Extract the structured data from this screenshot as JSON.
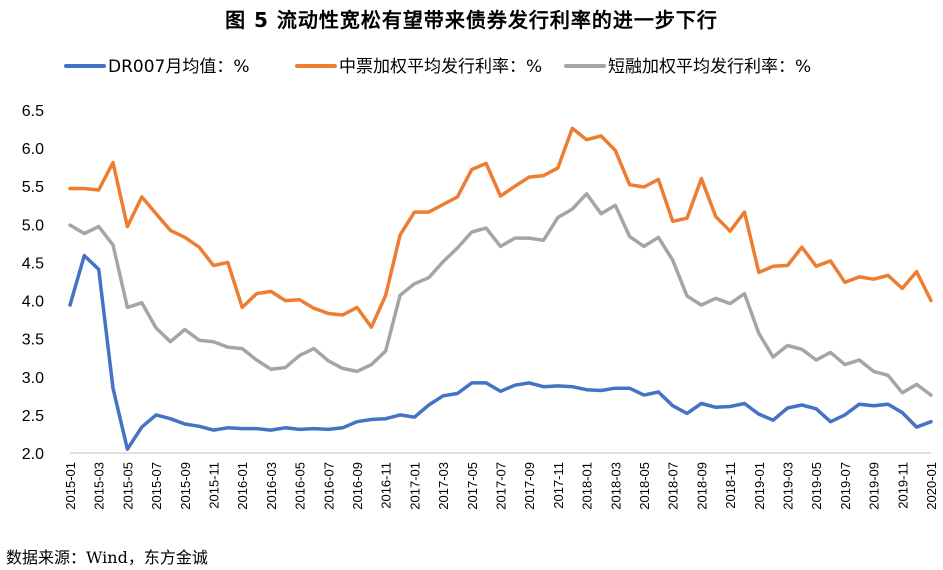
{
  "title": "图 5   流动性宽松有望带来债券发行利率的进一步下行",
  "source": "数据来源：Wind，东方金诚",
  "chart_data": {
    "type": "line",
    "title": "图 5   流动性宽松有望带来债券发行利率的进一步下行",
    "ylim": [
      2.0,
      6.5
    ],
    "yticks": [
      "2.0",
      "2.5",
      "3.0",
      "3.5",
      "4.0",
      "4.5",
      "5.0",
      "5.5",
      "6.0",
      "6.5"
    ],
    "legend_position": "top",
    "grid": false,
    "x": [
      "2015-01",
      "2015-02",
      "2015-03",
      "2015-04",
      "2015-05",
      "2015-06",
      "2015-07",
      "2015-08",
      "2015-09",
      "2015-10",
      "2015-11",
      "2015-12",
      "2016-01",
      "2016-02",
      "2016-03",
      "2016-04",
      "2016-05",
      "2016-06",
      "2016-07",
      "2016-08",
      "2016-09",
      "2016-10",
      "2016-11",
      "2016-12",
      "2017-01",
      "2017-02",
      "2017-03",
      "2017-04",
      "2017-05",
      "2017-06",
      "2017-07",
      "2017-08",
      "2017-09",
      "2017-10",
      "2017-11",
      "2017-12",
      "2018-01",
      "2018-02",
      "2018-03",
      "2018-04",
      "2018-05",
      "2018-06",
      "2018-07",
      "2018-08",
      "2018-09",
      "2018-10",
      "2018-11",
      "2018-12",
      "2019-01",
      "2019-02",
      "2019-03",
      "2019-04",
      "2019-05",
      "2019-06",
      "2019-07",
      "2019-08",
      "2019-09",
      "2019-10",
      "2019-11",
      "2019-12",
      "2020-01"
    ],
    "xtick_labels": [
      "2015-01",
      "2015-03",
      "2015-05",
      "2015-07",
      "2015-09",
      "2015-11",
      "2016-01",
      "2016-03",
      "2016-05",
      "2016-07",
      "2016-09",
      "2016-11",
      "2017-01",
      "2017-03",
      "2017-05",
      "2017-07",
      "2017-09",
      "2017-11",
      "2018-01",
      "2018-03",
      "2018-05",
      "2018-07",
      "2018-09",
      "2018-11",
      "2019-01",
      "2019-03",
      "2019-05",
      "2019-07",
      "2019-09",
      "2019-11",
      "2020-01"
    ],
    "series": [
      {
        "name": "DR007月均值：%",
        "color": "#4472C4",
        "values": [
          3.94,
          4.59,
          4.41,
          2.85,
          2.05,
          2.34,
          2.5,
          2.45,
          2.38,
          2.35,
          2.3,
          2.33,
          2.32,
          2.32,
          2.3,
          2.33,
          2.31,
          2.32,
          2.31,
          2.33,
          2.41,
          2.44,
          2.45,
          2.5,
          2.47,
          2.63,
          2.75,
          2.78,
          2.92,
          2.92,
          2.81,
          2.89,
          2.92,
          2.87,
          2.88,
          2.87,
          2.83,
          2.82,
          2.85,
          2.85,
          2.76,
          2.8,
          2.62,
          2.52,
          2.65,
          2.6,
          2.61,
          2.65,
          2.51,
          2.43,
          2.59,
          2.63,
          2.58,
          2.41,
          2.5,
          2.64,
          2.62,
          2.64,
          2.53,
          2.34,
          2.41
        ]
      },
      {
        "name": "中票加权平均发行利率：%",
        "color": "#ED7D31",
        "values": [
          5.47,
          5.47,
          5.45,
          5.81,
          4.97,
          5.36,
          5.14,
          4.92,
          4.83,
          4.7,
          4.46,
          4.5,
          3.91,
          4.09,
          4.12,
          4.0,
          4.01,
          3.9,
          3.83,
          3.81,
          3.91,
          3.65,
          4.07,
          4.86,
          5.16,
          5.16,
          5.26,
          5.36,
          5.72,
          5.8,
          5.37,
          5.5,
          5.62,
          5.64,
          5.74,
          6.26,
          6.11,
          6.16,
          5.97,
          5.52,
          5.49,
          5.59,
          5.04,
          5.08,
          5.6,
          5.1,
          4.91,
          5.16,
          4.37,
          4.45,
          4.46,
          4.7,
          4.45,
          4.52,
          4.24,
          4.31,
          4.28,
          4.33,
          4.16,
          4.38,
          4.0
        ]
      },
      {
        "name": "短融加权平均发行利率：%",
        "color": "#A5A5A5",
        "values": [
          4.99,
          4.88,
          4.97,
          4.73,
          3.91,
          3.97,
          3.64,
          3.46,
          3.62,
          3.48,
          3.46,
          3.39,
          3.37,
          3.22,
          3.1,
          3.12,
          3.28,
          3.37,
          3.21,
          3.11,
          3.07,
          3.16,
          3.34,
          4.07,
          4.22,
          4.3,
          4.51,
          4.69,
          4.9,
          4.95,
          4.71,
          4.82,
          4.82,
          4.79,
          5.09,
          5.2,
          5.4,
          5.14,
          5.25,
          4.84,
          4.71,
          4.83,
          4.53,
          4.06,
          3.94,
          4.03,
          3.96,
          4.09,
          3.57,
          3.26,
          3.41,
          3.36,
          3.22,
          3.32,
          3.16,
          3.22,
          3.07,
          3.02,
          2.79,
          2.9,
          2.76
        ]
      }
    ]
  }
}
